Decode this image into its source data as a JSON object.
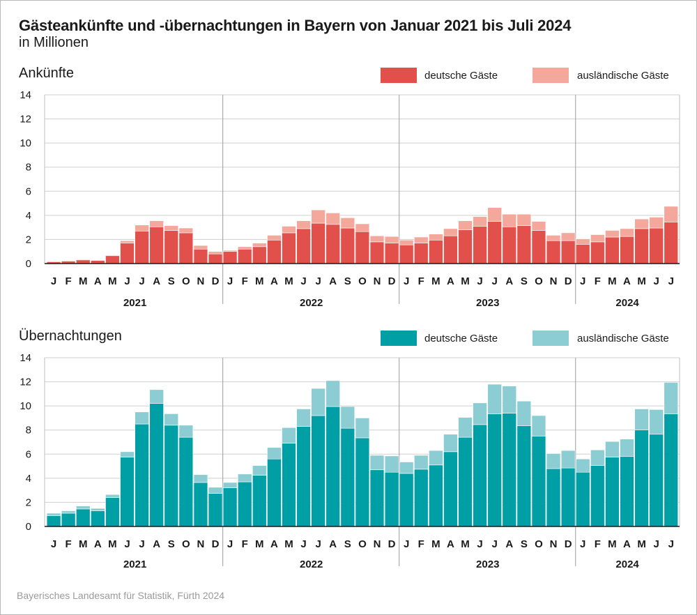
{
  "header": {
    "title": "Gästeankünfte und -übernachtungen in Bayern von Januar 2021 bis Juli 2024",
    "subtitle": "in Millionen"
  },
  "footer": {
    "source": "Bayerisches Landesamt für Statistik, Fürth 2024"
  },
  "chart_data": [
    {
      "type": "bar",
      "stacked": true,
      "title": "Ankünfte",
      "ylim": [
        0,
        14
      ],
      "yticks": [
        0,
        2,
        4,
        6,
        8,
        10,
        12,
        14
      ],
      "grid": true,
      "legend_position": "top-right",
      "years": [
        "2021",
        "2022",
        "2023",
        "2024"
      ],
      "categories": [
        "J",
        "F",
        "M",
        "A",
        "M",
        "J",
        "J",
        "A",
        "S",
        "O",
        "N",
        "D",
        "J",
        "F",
        "M",
        "A",
        "M",
        "J",
        "J",
        "A",
        "S",
        "O",
        "N",
        "D",
        "J",
        "F",
        "M",
        "A",
        "M",
        "J",
        "J",
        "A",
        "S",
        "O",
        "N",
        "D",
        "J",
        "F",
        "M",
        "A",
        "M",
        "J",
        "J"
      ],
      "series": [
        {
          "name": "deutsche Gäste",
          "color": "#e2504c",
          "values": [
            0.15,
            0.2,
            0.3,
            0.25,
            0.65,
            1.7,
            2.7,
            3.05,
            2.75,
            2.55,
            1.2,
            0.8,
            1.0,
            1.2,
            1.4,
            1.95,
            2.55,
            2.9,
            3.35,
            3.25,
            2.95,
            2.65,
            1.8,
            1.7,
            1.55,
            1.7,
            1.95,
            2.3,
            2.8,
            3.1,
            3.5,
            3.05,
            3.15,
            2.75,
            1.9,
            1.9,
            1.6,
            1.8,
            2.2,
            2.25,
            2.9,
            2.95,
            3.45
          ]
        },
        {
          "name": "ausländische Gäste",
          "color": "#f4a79b",
          "values": [
            0.05,
            0.05,
            0.05,
            0.05,
            0.05,
            0.2,
            0.5,
            0.5,
            0.4,
            0.4,
            0.3,
            0.2,
            0.1,
            0.2,
            0.3,
            0.4,
            0.55,
            0.65,
            1.1,
            0.95,
            0.85,
            0.65,
            0.5,
            0.55,
            0.4,
            0.5,
            0.5,
            0.6,
            0.75,
            0.8,
            1.15,
            1.05,
            0.95,
            0.75,
            0.45,
            0.65,
            0.45,
            0.6,
            0.55,
            0.65,
            0.8,
            0.9,
            1.3
          ]
        }
      ]
    },
    {
      "type": "bar",
      "stacked": true,
      "title": "Übernachtungen",
      "ylim": [
        0,
        14
      ],
      "yticks": [
        0,
        2,
        4,
        6,
        8,
        10,
        12,
        14
      ],
      "grid": true,
      "legend_position": "top-right",
      "years": [
        "2021",
        "2022",
        "2023",
        "2024"
      ],
      "categories": [
        "J",
        "F",
        "M",
        "A",
        "M",
        "J",
        "J",
        "A",
        "S",
        "O",
        "N",
        "D",
        "J",
        "F",
        "M",
        "A",
        "M",
        "J",
        "J",
        "A",
        "S",
        "O",
        "N",
        "D",
        "J",
        "F",
        "M",
        "A",
        "M",
        "J",
        "J",
        "A",
        "S",
        "O",
        "N",
        "D",
        "J",
        "F",
        "M",
        "A",
        "M",
        "J",
        "J"
      ],
      "series": [
        {
          "name": "deutsche Gäste",
          "color": "#009ea5",
          "values": [
            0.9,
            1.1,
            1.45,
            1.3,
            2.4,
            5.75,
            8.5,
            10.2,
            8.4,
            7.4,
            3.65,
            2.75,
            3.2,
            3.7,
            4.25,
            5.6,
            6.9,
            8.3,
            9.2,
            9.95,
            8.15,
            7.35,
            4.7,
            4.5,
            4.4,
            4.75,
            5.1,
            6.2,
            7.4,
            8.45,
            9.35,
            9.4,
            8.35,
            7.5,
            4.8,
            4.85,
            4.5,
            5.05,
            5.75,
            5.8,
            8.0,
            7.65,
            9.35
          ]
        },
        {
          "name": "ausländische Gäste",
          "color": "#8ccdd3",
          "values": [
            0.2,
            0.2,
            0.25,
            0.2,
            0.25,
            0.45,
            1.0,
            1.15,
            0.95,
            1.0,
            0.65,
            0.5,
            0.45,
            0.65,
            0.8,
            0.95,
            1.3,
            1.45,
            2.25,
            2.15,
            1.8,
            1.65,
            1.2,
            1.35,
            0.95,
            1.15,
            1.2,
            1.45,
            1.65,
            1.8,
            2.45,
            2.25,
            2.05,
            1.7,
            1.25,
            1.45,
            1.1,
            1.3,
            1.3,
            1.45,
            1.75,
            2.05,
            2.6
          ]
        }
      ]
    }
  ]
}
